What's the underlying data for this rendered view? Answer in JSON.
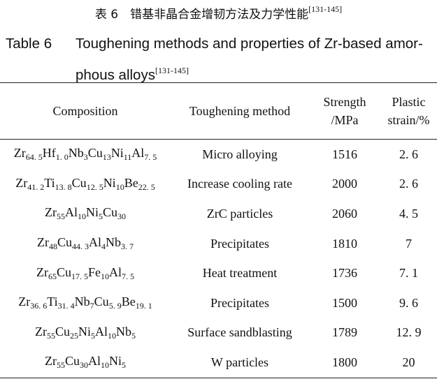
{
  "caption": {
    "cn": "表 6　错基非晶合金增韧方法及力学性能",
    "cn_ref": "[131-145]",
    "label": "Table 6",
    "en_line1": "Toughening methods and properties of Zr-based amor-",
    "en_line2": "phous alloys",
    "en_ref": "[131-145]"
  },
  "headers": {
    "composition": "Composition",
    "method": "Toughening method",
    "strength_1": "Strength",
    "strength_2": "/MPa",
    "strain_1": "Plastic",
    "strain_2": "strain/%"
  },
  "rows": [
    {
      "composition": [
        [
          "Zr",
          "64. 5"
        ],
        [
          "Hf",
          "1. 0"
        ],
        [
          "Nb",
          "3"
        ],
        [
          "Cu",
          "13"
        ],
        [
          "Ni",
          "11"
        ],
        [
          "Al",
          "7. 5"
        ]
      ],
      "method": "Micro alloying",
      "strength": "1516",
      "strain": "2. 6"
    },
    {
      "composition": [
        [
          "Zr",
          "41. 2"
        ],
        [
          "Ti",
          "13. 8"
        ],
        [
          "Cu",
          "12. 5"
        ],
        [
          "Ni",
          "10"
        ],
        [
          "Be",
          "22. 5"
        ]
      ],
      "method": "Increase cooling rate",
      "strength": "2000",
      "strain": "2. 6"
    },
    {
      "composition": [
        [
          "Zr",
          "55"
        ],
        [
          "Al",
          "10"
        ],
        [
          "Ni",
          "5"
        ],
        [
          "Cu",
          "30"
        ]
      ],
      "method": "ZrC particles",
      "strength": "2060",
      "strain": "4. 5"
    },
    {
      "composition": [
        [
          "Zr",
          "48"
        ],
        [
          "Cu",
          "44. 3"
        ],
        [
          "Al",
          "4"
        ],
        [
          "Nb",
          "3. 7"
        ]
      ],
      "method": "Precipitates",
      "strength": "1810",
      "strain": "7"
    },
    {
      "composition": [
        [
          "Zr",
          "65"
        ],
        [
          "Cu",
          "17. 5"
        ],
        [
          "Fe",
          "10"
        ],
        [
          "Al",
          "7. 5"
        ]
      ],
      "method": "Heat treatment",
      "strength": "1736",
      "strain": "7. 1"
    },
    {
      "composition": [
        [
          "Zr",
          "36. 6"
        ],
        [
          "Ti",
          "31. 4"
        ],
        [
          "Nb",
          "7"
        ],
        [
          "Cu",
          "5. 9"
        ],
        [
          "Be",
          "19. 1"
        ]
      ],
      "method": "Precipitates",
      "strength": "1500",
      "strain": "9. 6"
    },
    {
      "composition": [
        [
          "Zr",
          "55"
        ],
        [
          "Cu",
          "25"
        ],
        [
          "Ni",
          "5"
        ],
        [
          "Al",
          "10"
        ],
        [
          "Nb",
          "5"
        ]
      ],
      "method": "Surface sandblasting",
      "strength": "1789",
      "strain": "12. 9"
    },
    {
      "composition": [
        [
          "Zr",
          "55"
        ],
        [
          "Cu",
          "30"
        ],
        [
          "Al",
          "10"
        ],
        [
          "Ni",
          "5"
        ]
      ],
      "method": "W particles",
      "strength": "1800",
      "strain": "20"
    }
  ]
}
